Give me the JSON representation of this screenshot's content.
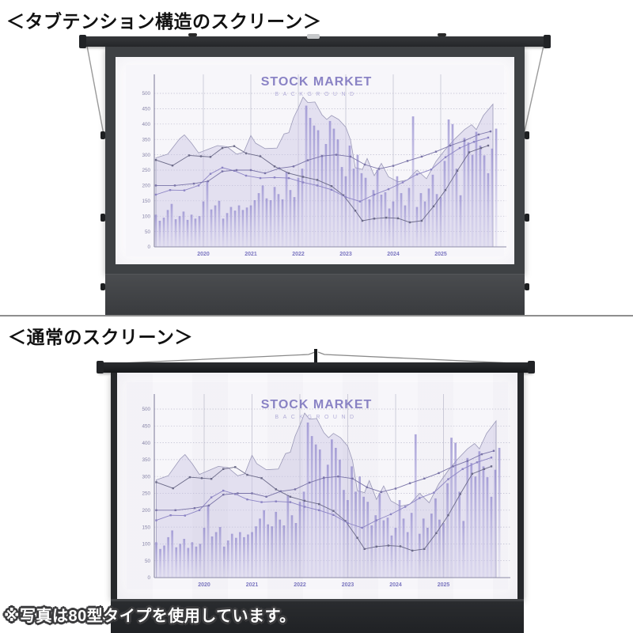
{
  "sections": {
    "tab_tension": {
      "heading": "＜タブテンション構造のスクリーン＞"
    },
    "normal": {
      "heading": "＜通常のスクリーン＞"
    },
    "note": "※写真は80型タイプを使用しています。"
  },
  "chart_data": {
    "type": "combo-bar-line-area",
    "title": "STOCK MARKET",
    "subtitle": "BACKGROUND",
    "ylim": [
      0,
      500
    ],
    "y_ticks": [
      500,
      450,
      400,
      350,
      300,
      250,
      200,
      150,
      100,
      50,
      0
    ],
    "x_labels": [
      "2020",
      "2021",
      "2022",
      "2023",
      "2024",
      "2025"
    ],
    "grid": "vertical-solid-horizontal-dotted",
    "bars_start_year": 2019,
    "bars_interval_years": 0.0833,
    "bars": [
      105,
      85,
      95,
      120,
      140,
      90,
      100,
      115,
      88,
      105,
      92,
      100,
      148,
      215,
      122,
      135,
      150,
      92,
      110,
      130,
      118,
      135,
      120,
      128,
      135,
      152,
      175,
      200,
      158,
      152,
      195,
      172,
      155,
      245,
      185,
      162,
      225,
      255,
      460,
      420,
      395,
      380,
      300,
      335,
      410,
      385,
      350,
      260,
      230,
      330,
      255,
      300,
      240,
      225,
      155,
      185,
      250,
      170,
      178,
      125,
      148,
      230,
      175,
      135,
      192,
      425,
      130,
      175,
      148,
      190,
      235,
      172,
      162,
      280,
      415,
      400,
      255,
      168,
      355,
      340,
      300,
      375,
      330,
      298,
      240,
      320,
      385
    ],
    "area": [
      [
        2019.0,
        290
      ],
      [
        2019.25,
        302
      ],
      [
        2019.5,
        352
      ],
      [
        2019.6,
        365
      ],
      [
        2019.75,
        338
      ],
      [
        2019.9,
        306
      ],
      [
        2020.1,
        318
      ],
      [
        2020.3,
        330
      ],
      [
        2020.5,
        326
      ],
      [
        2020.7,
        302
      ],
      [
        2020.85,
        308
      ],
      [
        2021.0,
        363
      ],
      [
        2021.1,
        338
      ],
      [
        2021.3,
        320
      ],
      [
        2021.55,
        322
      ],
      [
        2021.7,
        368
      ],
      [
        2021.8,
        372
      ],
      [
        2021.9,
        420
      ],
      [
        2022.0,
        452
      ],
      [
        2022.1,
        488
      ],
      [
        2022.2,
        470
      ],
      [
        2022.35,
        472
      ],
      [
        2022.5,
        430
      ],
      [
        2022.6,
        415
      ],
      [
        2022.7,
        428
      ],
      [
        2022.85,
        415
      ],
      [
        2023.0,
        390
      ],
      [
        2023.1,
        348
      ],
      [
        2023.2,
        258
      ],
      [
        2023.35,
        252
      ],
      [
        2023.45,
        288
      ],
      [
        2023.6,
        232
      ],
      [
        2023.75,
        272
      ],
      [
        2023.9,
        228
      ],
      [
        2024.1,
        212
      ],
      [
        2024.3,
        218
      ],
      [
        2024.5,
        250
      ],
      [
        2024.7,
        222
      ],
      [
        2024.9,
        278
      ],
      [
        2025.1,
        318
      ],
      [
        2025.3,
        352
      ],
      [
        2025.5,
        382
      ],
      [
        2025.65,
        398
      ],
      [
        2025.75,
        382
      ],
      [
        2025.9,
        428
      ],
      [
        2026.1,
        465
      ]
    ],
    "series": [
      {
        "name": "line-1",
        "points": [
          [
            2019.0,
            283
          ],
          [
            2019.35,
            265
          ],
          [
            2019.7,
            298
          ],
          [
            2019.95,
            295
          ],
          [
            2020.15,
            293
          ],
          [
            2020.4,
            322
          ],
          [
            2020.65,
            328
          ],
          [
            2020.9,
            305
          ],
          [
            2021.2,
            295
          ],
          [
            2021.5,
            262
          ],
          [
            2021.8,
            240
          ],
          [
            2022.1,
            228
          ],
          [
            2022.4,
            218
          ],
          [
            2022.7,
            198
          ],
          [
            2022.95,
            168
          ],
          [
            2023.2,
            118
          ],
          [
            2023.35,
            85
          ],
          [
            2023.6,
            92
          ],
          [
            2023.85,
            95
          ],
          [
            2024.1,
            93
          ],
          [
            2024.35,
            80
          ],
          [
            2024.6,
            85
          ],
          [
            2024.85,
            132
          ],
          [
            2025.1,
            185
          ],
          [
            2025.35,
            248
          ],
          [
            2025.6,
            308
          ],
          [
            2025.85,
            322
          ],
          [
            2026.0,
            330
          ]
        ]
      },
      {
        "name": "line-2",
        "points": [
          [
            2019.0,
            170
          ],
          [
            2019.3,
            185
          ],
          [
            2019.6,
            184
          ],
          [
            2019.9,
            200
          ],
          [
            2020.15,
            238
          ],
          [
            2020.4,
            258
          ],
          [
            2020.65,
            248
          ],
          [
            2020.9,
            232
          ],
          [
            2021.2,
            224
          ],
          [
            2021.5,
            226
          ],
          [
            2021.8,
            224
          ],
          [
            2022.1,
            210
          ],
          [
            2022.4,
            200
          ],
          [
            2022.7,
            186
          ],
          [
            2023.0,
            162
          ],
          [
            2023.3,
            148
          ],
          [
            2023.6,
            170
          ],
          [
            2023.9,
            188
          ],
          [
            2024.2,
            210
          ],
          [
            2024.5,
            236
          ],
          [
            2024.8,
            252
          ],
          [
            2025.1,
            292
          ],
          [
            2025.4,
            322
          ],
          [
            2025.7,
            342
          ],
          [
            2026.0,
            356
          ]
        ]
      },
      {
        "name": "line-3",
        "points": [
          [
            2019.0,
            200
          ],
          [
            2019.4,
            200
          ],
          [
            2019.8,
            206
          ],
          [
            2020.1,
            214
          ],
          [
            2020.4,
            246
          ],
          [
            2020.7,
            250
          ],
          [
            2021.0,
            250
          ],
          [
            2021.3,
            240
          ],
          [
            2021.6,
            256
          ],
          [
            2021.9,
            262
          ],
          [
            2022.2,
            282
          ],
          [
            2022.5,
            296
          ],
          [
            2022.8,
            300
          ],
          [
            2023.1,
            294
          ],
          [
            2023.4,
            268
          ],
          [
            2023.7,
            254
          ],
          [
            2024.0,
            264
          ],
          [
            2024.3,
            280
          ],
          [
            2024.6,
            294
          ],
          [
            2024.9,
            310
          ],
          [
            2025.2,
            330
          ],
          [
            2025.5,
            346
          ],
          [
            2025.8,
            366
          ],
          [
            2026.05,
            376
          ]
        ]
      }
    ]
  },
  "colors": {
    "heading_text": "#111111",
    "divider": "#8e8e8e",
    "note_fill": "#ffffff",
    "note_outline": "#3a3a3c",
    "screen1": {
      "top_bar": "#2c2e31",
      "frame": "#3e4144",
      "case": "#3d3f42",
      "surface": "#fcfbfd",
      "wire": "#9a9a9a"
    },
    "screen2": {
      "top_bar": "#1f2124",
      "edge": "#26282b",
      "case": "#26282a",
      "surface": "#fcfbfd",
      "wire": "#8a8a8a"
    },
    "chart": {
      "title": "#8a83c5",
      "subtitle": "#b3aed9",
      "axis": "#8f8da8",
      "axis_label": "#7b76c0",
      "tick_label": "#8784a8",
      "grid_v": "#c9c9d6",
      "grid_h": "#b9b8cb",
      "area_fill": "#cac5e4",
      "area_stroke": "#9b99b8",
      "bar_top": "#8d84cc",
      "bar_bottom": "#cfcbea",
      "lines": [
        "#6b6a88",
        "#8c84c4",
        "#7a74a8"
      ],
      "paper": "#f7f6fa"
    }
  }
}
